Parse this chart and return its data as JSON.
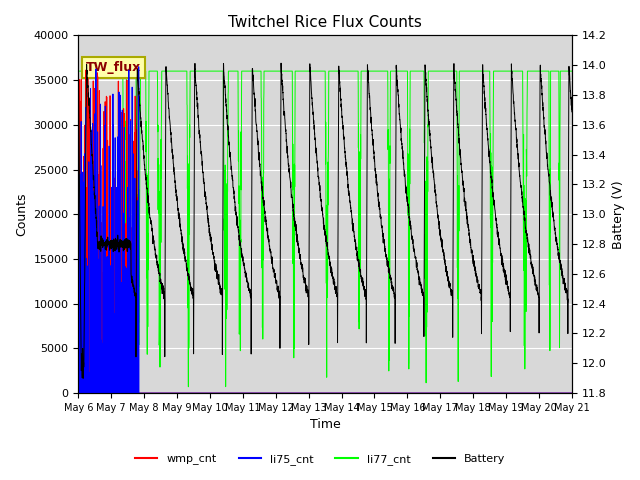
{
  "title": "Twitchel Rice Flux Counts",
  "xlabel": "Time",
  "ylabel_left": "Counts",
  "ylabel_right": "Battery (V)",
  "ylim_left": [
    0,
    40000
  ],
  "ylim_right": [
    11.8,
    14.2
  ],
  "yticks_left": [
    0,
    5000,
    10000,
    15000,
    20000,
    25000,
    30000,
    35000,
    40000
  ],
  "yticks_right": [
    11.8,
    12.0,
    12.2,
    12.4,
    12.6,
    12.8,
    13.0,
    13.2,
    13.4,
    13.6,
    13.8,
    14.0,
    14.2
  ],
  "bg_color": "#d8d8d8",
  "annotation_text": "TW_flux",
  "annotation_facecolor": "#ffffaa",
  "annotation_edgecolor": "#aaaa00",
  "annotation_textcolor": "#8b0000",
  "colors": {
    "wmp_cnt": "#ff0000",
    "li75_cnt": "#0000ff",
    "li77_cnt": "#00ff00",
    "Battery": "#000000"
  },
  "legend_labels": [
    "wmp_cnt",
    "li75_cnt",
    "li77_cnt",
    "Battery"
  ],
  "xtick_labels": [
    "May 6",
    "May 7",
    "May 8",
    "May 9",
    "May 10",
    "May 11",
    "May 12",
    "May 13",
    "May 14",
    "May 15",
    "May 16",
    "May 17",
    "May 18",
    "May 19",
    "May 20",
    "May 21"
  ],
  "num_days": 15,
  "li77_level": 36000,
  "batt_high": 14.0,
  "batt_low": 12.0,
  "batt_period_hrs": 21.0
}
